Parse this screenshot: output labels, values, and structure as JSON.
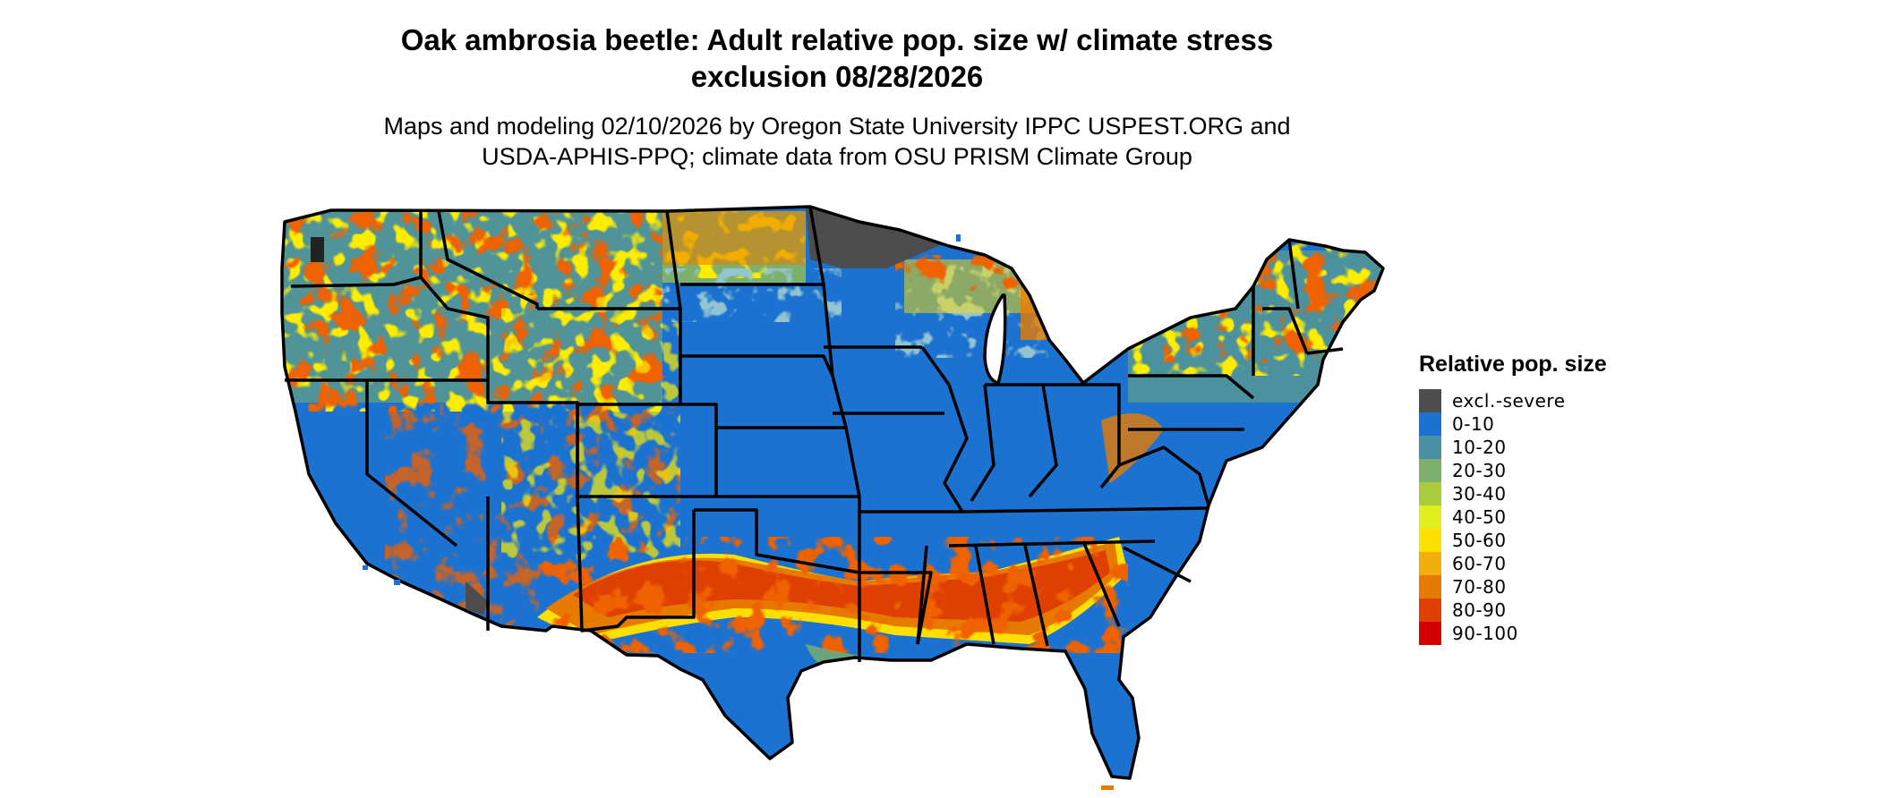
{
  "title": {
    "line1": "Oak ambrosia beetle: Adult relative pop. size w/ climate stress",
    "line2": "exclusion 08/28/2026"
  },
  "subtitle": {
    "line1": "Maps and modeling 02/10/2026 by Oregon State University IPPC USPEST.ORG and",
    "line2": "USDA-APHIS-PPQ; climate data from OSU PRISM Climate Group"
  },
  "legend": {
    "title": "Relative pop. size",
    "items": [
      {
        "label": "excl.-severe",
        "color": "#4d4d4d"
      },
      {
        "label": "0-10",
        "color": "#1c72d0"
      },
      {
        "label": "10-20",
        "color": "#4a8fa3"
      },
      {
        "label": "20-30",
        "color": "#7cb06c"
      },
      {
        "label": "30-40",
        "color": "#a8cc3c"
      },
      {
        "label": "40-50",
        "color": "#e2ef1c"
      },
      {
        "label": "50-60",
        "color": "#fde000"
      },
      {
        "label": "60-70",
        "color": "#f2ae0a"
      },
      {
        "label": "70-80",
        "color": "#e77a00"
      },
      {
        "label": "80-90",
        "color": "#df3f00"
      },
      {
        "label": "90-100",
        "color": "#d20000"
      }
    ]
  }
}
